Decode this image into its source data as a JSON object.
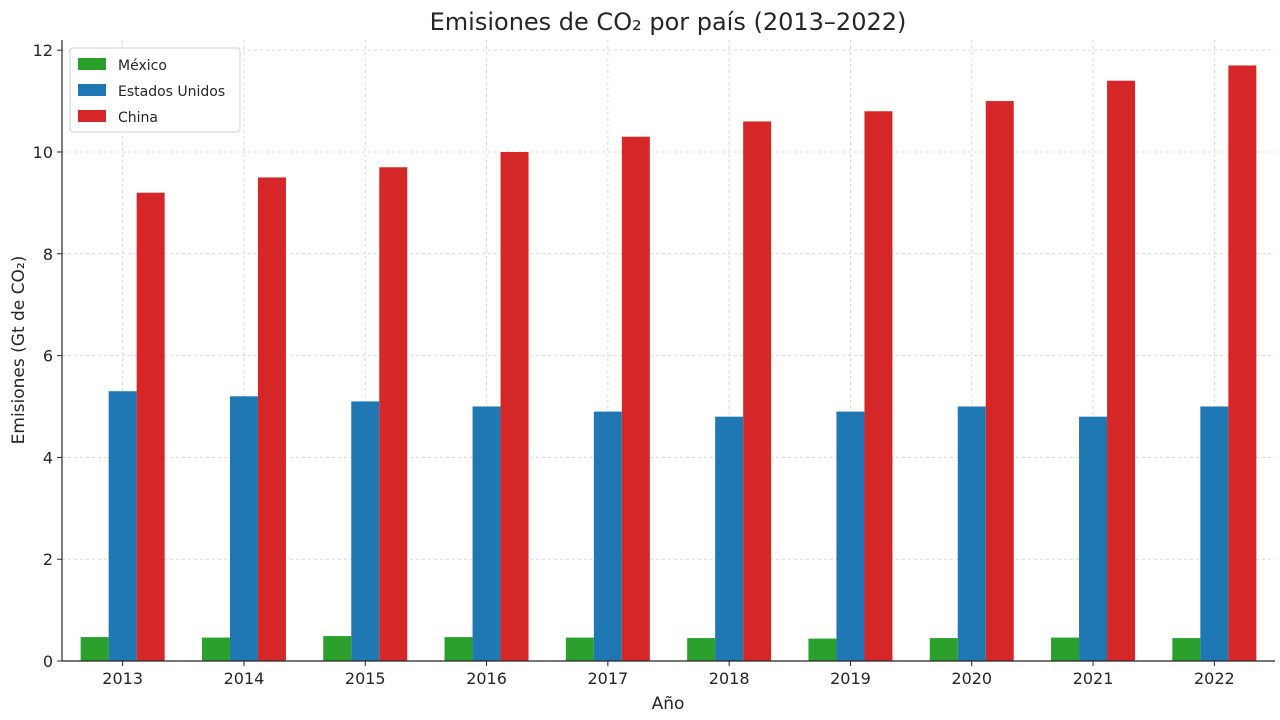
{
  "chart_data": {
    "type": "bar",
    "title": "Emisiones de CO₂ por país (2013–2022)",
    "xlabel": "Año",
    "ylabel": "Emisiones (Gt de CO₂)",
    "categories": [
      "2013",
      "2014",
      "2015",
      "2016",
      "2017",
      "2018",
      "2019",
      "2020",
      "2021",
      "2022"
    ],
    "ylim": [
      0,
      12.2
    ],
    "yticks": [
      0,
      2,
      4,
      6,
      8,
      10,
      12
    ],
    "grid": true,
    "legend_position": "top-left",
    "series": [
      {
        "name": "México",
        "color": "#2ca02c",
        "values": [
          0.47,
          0.46,
          0.49,
          0.47,
          0.46,
          0.45,
          0.44,
          0.45,
          0.46,
          0.45
        ]
      },
      {
        "name": "Estados Unidos",
        "color": "#1f77b4",
        "values": [
          5.3,
          5.2,
          5.1,
          5.0,
          4.9,
          4.8,
          4.9,
          5.0,
          4.8,
          5.0
        ]
      },
      {
        "name": "China",
        "color": "#d62728",
        "values": [
          9.2,
          9.5,
          9.7,
          10.0,
          10.3,
          10.6,
          10.8,
          11.0,
          11.4,
          11.7
        ]
      }
    ]
  }
}
